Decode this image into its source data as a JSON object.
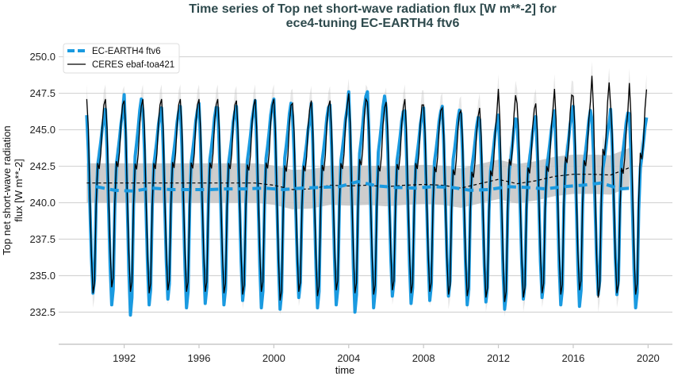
{
  "chart_data": {
    "type": "line",
    "title": [
      "Time series of Top net short-wave radiation flux [W m**-2] for",
      "ece4-tuning EC-EARTH4 ftv6"
    ],
    "xlabel": "time",
    "ylabel": [
      "Top net short-wave radiation",
      "flux [W m**-2]"
    ],
    "xlim": [
      1988.5,
      2021.3
    ],
    "ylim": [
      230.3,
      250.9
    ],
    "xticks": [
      "1992",
      "1996",
      "2000",
      "2004",
      "2008",
      "2012",
      "2016",
      "2020"
    ],
    "yticks": [
      "232.5",
      "235.0",
      "237.5",
      "240.0",
      "242.5",
      "245.0",
      "247.5",
      "250.0"
    ],
    "grid": "horizontal",
    "legend_placement": "top-left",
    "years": [
      1990,
      1991,
      1992,
      1993,
      1994,
      1995,
      1996,
      1997,
      1998,
      1999,
      2000,
      2001,
      2002,
      2003,
      2004,
      2005,
      2006,
      2007,
      2008,
      2009,
      2010,
      2011,
      2012,
      2013,
      2014,
      2015,
      2016,
      2017,
      2018,
      2019
    ],
    "series": [
      {
        "name": "EC-EARTH4 ftv6",
        "color": "#1a9ae0",
        "style": "thick solid (monthly), thick dashed (12-month running mean)",
        "monthly_seasonal_shape": [
          1,
          0.8,
          0.5,
          0.2,
          0,
          0.08,
          0.5,
          0.72,
          0.78,
          0.85,
          0.93,
          0.98
        ],
        "annual_max": [
          246.0,
          246.4,
          247.4,
          246.3,
          246.5,
          246.6,
          246.8,
          246.5,
          246.6,
          247.0,
          247.1,
          245.9,
          246.8,
          246.7,
          247.6,
          247.6,
          246.5,
          246.3,
          246.5,
          246.6,
          246.1,
          245.7,
          246.0,
          245.7,
          245.9,
          246.3,
          246.6,
          245.7,
          246.4,
          246.1
        ],
        "annual_min": [
          233.8,
          233.0,
          232.3,
          233.0,
          233.4,
          232.8,
          233.1,
          233.0,
          233.3,
          232.8,
          232.7,
          233.5,
          232.8,
          233.0,
          232.5,
          232.8,
          233.6,
          233.1,
          233.3,
          233.6,
          233.0,
          233.2,
          232.7,
          233.4,
          233.5,
          233.0,
          232.9,
          233.7,
          233.7,
          232.8
        ],
        "running_mean_years": [
          1990.5,
          1991.5,
          1992.5,
          1993.5,
          1994.5,
          1995.5,
          1996.5,
          1997.5,
          1998.5,
          1999.5,
          2000.5,
          2001.5,
          2002.5,
          2003.5,
          2004.5,
          2005.5,
          2006.5,
          2007.5,
          2008.5,
          2009.5,
          2010.5,
          2011.5,
          2012.5,
          2013.5,
          2014.5,
          2015.5,
          2016.5,
          2017.5,
          2018.5,
          2019.2
        ],
        "running_mean": [
          241.1,
          240.85,
          240.8,
          241.0,
          240.9,
          240.9,
          240.9,
          240.95,
          240.95,
          241.0,
          240.9,
          241.0,
          241.05,
          241.1,
          241.45,
          241.15,
          241.05,
          241.0,
          241.1,
          241.05,
          240.85,
          240.9,
          241.1,
          241.05,
          240.95,
          241.1,
          241.2,
          241.35,
          240.95,
          241.0
        ]
      },
      {
        "name": "CERES ebaf-toa421",
        "color": "#000000",
        "style": "thin solid (monthly), thin dashed (12-month running mean)",
        "monthly_seasonal_shape": [
          1,
          0.85,
          0.5,
          0.2,
          0,
          0.05,
          0.45,
          0.67,
          0.64,
          0.72,
          0.88,
          0.97
        ],
        "annual_max": [
          247.1,
          247.1,
          247.0,
          247.1,
          247.1,
          247.1,
          247.1,
          247.1,
          247.0,
          247.1,
          247.1,
          246.8,
          247.0,
          247.0,
          247.5,
          246.9,
          246.9,
          247.1,
          246.7,
          246.5,
          246.3,
          246.5,
          247.8,
          246.8,
          246.8,
          247.8,
          247.3,
          248.7,
          246.6,
          248.2
        ],
        "annual_min": [
          233.8,
          234.2,
          233.9,
          233.8,
          234.0,
          233.9,
          233.9,
          233.8,
          233.7,
          233.9,
          233.3,
          233.9,
          233.6,
          234.0,
          233.8,
          233.7,
          234.0,
          233.8,
          233.9,
          233.7,
          233.6,
          233.5,
          233.2,
          233.5,
          233.8,
          233.7,
          234.0,
          233.5,
          233.8,
          233.7
        ],
        "running_mean_years": [
          1990.0,
          1991.0,
          1992.0,
          1993.0,
          1994.0,
          1995.0,
          1996.0,
          1997.0,
          1998.0,
          1999.0,
          2000.0,
          2001.0,
          2002.0,
          2003.0,
          2004.0,
          2005.0,
          2006.0,
          2007.0,
          2008.0,
          2009.0,
          2010.0,
          2011.0,
          2012.0,
          2013.0,
          2014.0,
          2015.0,
          2016.0,
          2017.0,
          2018.0,
          2019.0
        ],
        "running_mean": [
          241.35,
          241.35,
          241.35,
          241.35,
          241.35,
          241.35,
          241.35,
          241.35,
          241.35,
          241.35,
          241.2,
          240.9,
          240.95,
          241.2,
          241.15,
          241.2,
          241.1,
          241.2,
          241.25,
          241.2,
          241.0,
          241.3,
          241.6,
          241.3,
          241.5,
          241.8,
          241.95,
          241.95,
          241.9,
          242.4
        ],
        "running_mean_band_halfwidth": 1.35,
        "monthly_uncertainty": 1.0
      }
    ]
  }
}
